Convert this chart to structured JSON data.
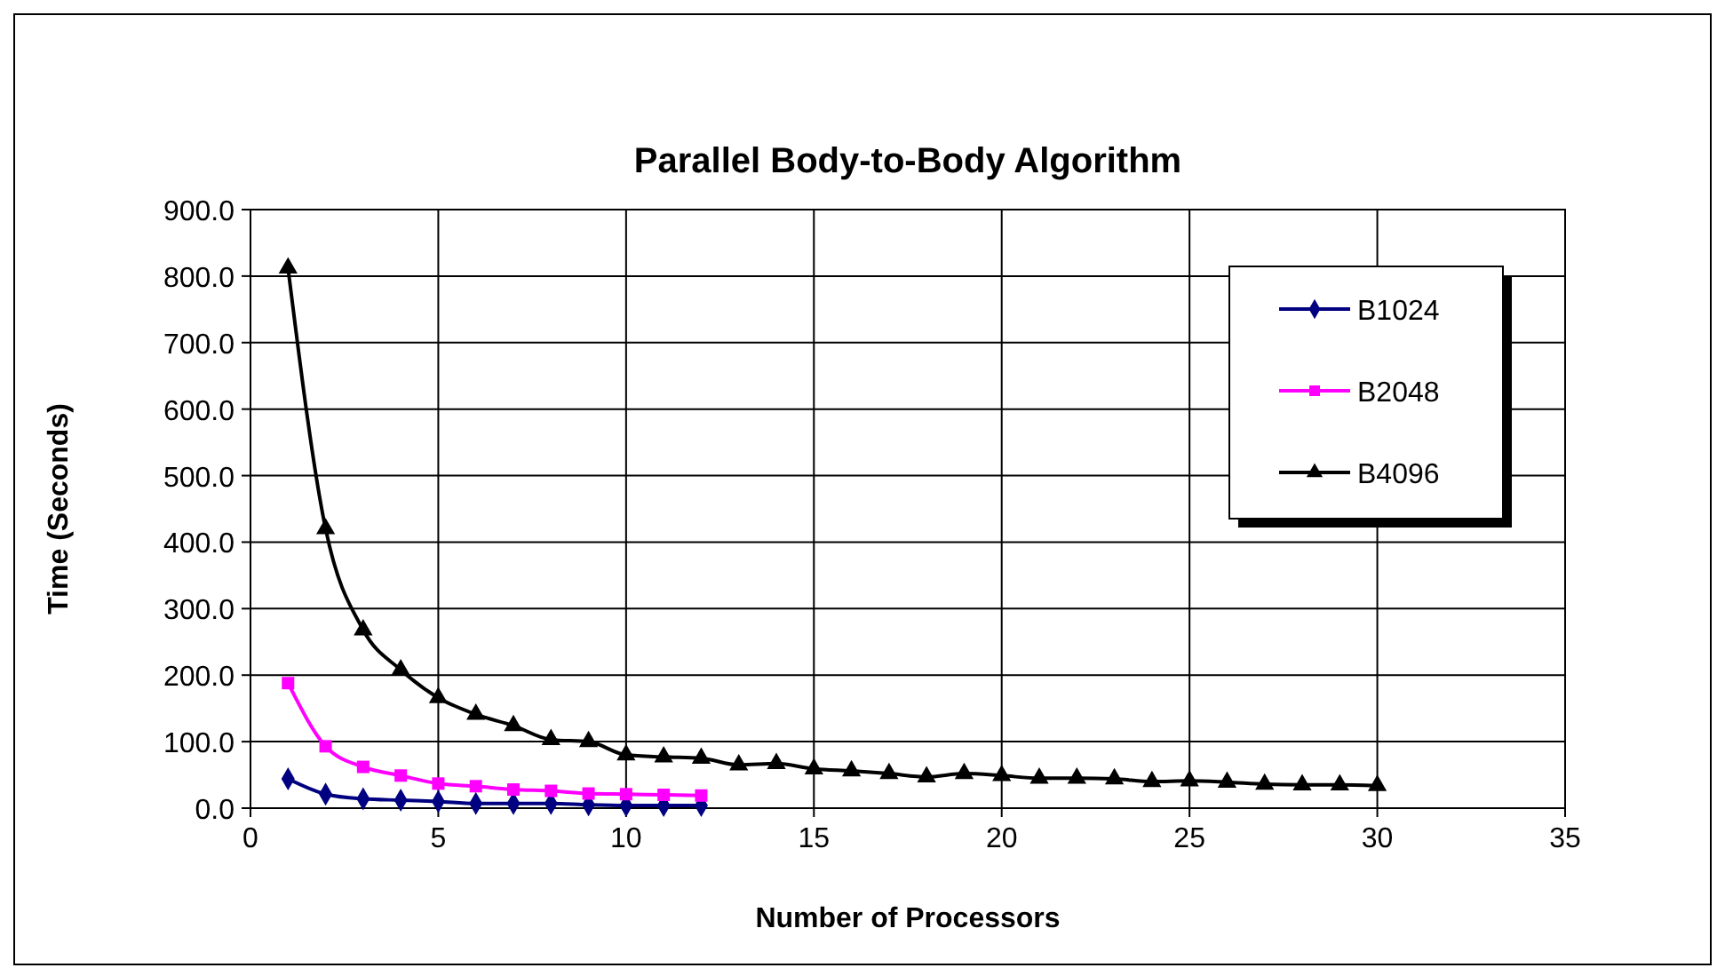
{
  "chart_data": {
    "type": "line",
    "title": "Parallel Body-to-Body Algorithm",
    "xlabel": "Number of Processors",
    "ylabel": "Time (Seconds)",
    "xlim": [
      0,
      35
    ],
    "xticks": [
      0,
      5,
      10,
      15,
      20,
      25,
      30,
      35
    ],
    "ylim": [
      0,
      900
    ],
    "yticks": [
      {
        "value": 0,
        "label": "0.0"
      },
      {
        "value": 100,
        "label": "100.0"
      },
      {
        "value": 200,
        "label": "200.0"
      },
      {
        "value": 300,
        "label": "300.0"
      },
      {
        "value": 400,
        "label": "400.0"
      },
      {
        "value": 500,
        "label": "500.0"
      },
      {
        "value": 600,
        "label": "600.0"
      },
      {
        "value": 700,
        "label": "700.0"
      },
      {
        "value": 800,
        "label": "800.0"
      },
      {
        "value": 900,
        "label": "900.0"
      }
    ],
    "grid": true,
    "legend": "right",
    "line_style": "solid",
    "series": [
      {
        "name": "B1024",
        "color": "#000080",
        "marker": "diamond",
        "x": [
          1,
          2,
          3,
          4,
          5,
          6,
          7,
          8,
          9,
          10,
          11,
          12
        ],
        "values": [
          44,
          21,
          14,
          12,
          10,
          7,
          7,
          7,
          5,
          4,
          4,
          4
        ]
      },
      {
        "name": "B2048",
        "color": "#ff00ff",
        "marker": "square",
        "x": [
          1,
          2,
          3,
          4,
          5,
          6,
          7,
          8,
          9,
          10,
          11,
          12
        ],
        "values": [
          188,
          93,
          62,
          49,
          37,
          33,
          28,
          26,
          22,
          21,
          20,
          19
        ]
      },
      {
        "name": "B4096",
        "color": "#000000",
        "marker": "triangle",
        "x": [
          1,
          2,
          3,
          4,
          5,
          6,
          7,
          8,
          9,
          10,
          11,
          12,
          13,
          14,
          15,
          16,
          17,
          18,
          19,
          20,
          21,
          22,
          23,
          24,
          25,
          26,
          27,
          28,
          29,
          30
        ],
        "values": [
          812,
          420,
          268,
          208,
          166,
          141,
          124,
          103,
          100,
          80,
          77,
          75,
          65,
          67,
          59,
          56,
          52,
          47,
          52,
          49,
          45,
          45,
          44,
          40,
          41,
          39,
          36,
          35,
          35,
          34
        ]
      }
    ]
  }
}
